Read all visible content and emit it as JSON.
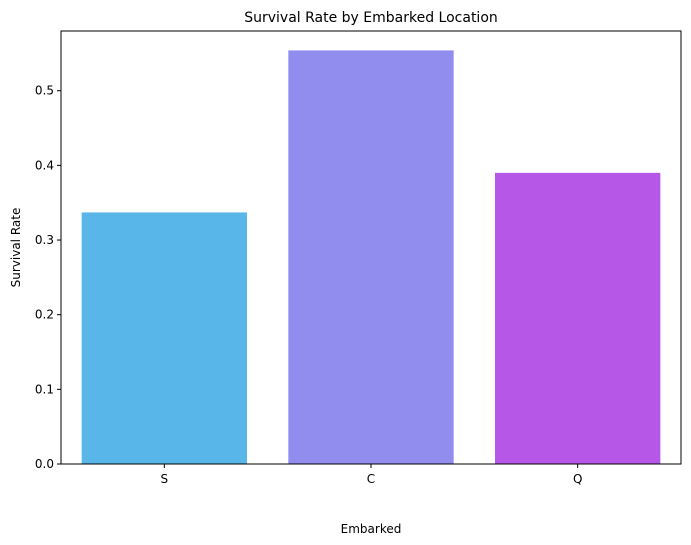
{
  "chart_data": {
    "type": "bar",
    "title": "Survival Rate by Embarked Location",
    "xlabel": "Embarked",
    "ylabel": "Survival Rate",
    "categories": [
      "S",
      "C",
      "Q"
    ],
    "values": [
      0.337,
      0.554,
      0.39
    ],
    "colors": [
      "#58b6e9",
      "#918dee",
      "#b657e7"
    ],
    "ylim": [
      0,
      0.58
    ],
    "yticks": [
      0.0,
      0.1,
      0.2,
      0.3,
      0.4,
      0.5
    ],
    "ytick_labels": [
      "0.0",
      "0.1",
      "0.2",
      "0.3",
      "0.4",
      "0.5"
    ],
    "grid": false,
    "legend": "none"
  }
}
